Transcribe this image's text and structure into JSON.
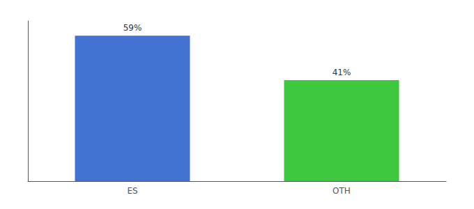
{
  "chart_data": {
    "type": "bar",
    "categories": [
      "ES",
      "OTH"
    ],
    "values": [
      59,
      41
    ],
    "value_labels": [
      "59%",
      "41%"
    ],
    "colors": [
      "#4472d4",
      "#3dc83d"
    ],
    "ylim": [
      0,
      65
    ],
    "data_labels": true,
    "tick_labels": "x",
    "grid": false
  }
}
